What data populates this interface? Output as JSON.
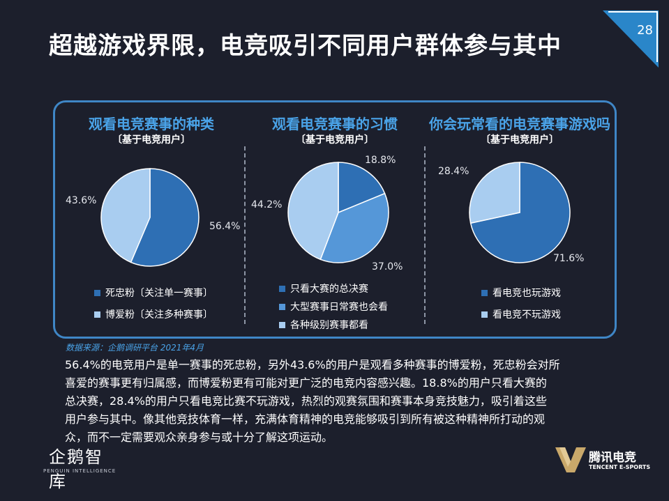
{
  "page": {
    "title": "超越游戏界限，电竞吸引不同用户群体参与其中",
    "page_number": "28",
    "source": "数据来源：企鹅调研平台 2021年4月",
    "body_lines": [
      "56.4%的电竞用户是单一赛事的死忠粉，另外43.6%的用户是观看多种赛事的博爱粉，死忠粉会对所",
      "喜爱的赛事更有归属感，而博爱粉更有可能对更广泛的电竞内容感兴趣。18.8%的用户只看大赛的",
      "总决赛，28.4%的用户只看电竞比赛不玩游戏，热烈的观赛氛围和赛事本身竞技魅力，吸引着这些",
      "用户参与其中。像其他竞技体育一样，充满体育精神的电竞能够吸引到所有被这种精神所打动的观",
      "众，而不一定需要观众亲身参与或十分了解这项运动。"
    ],
    "logo_left_main": "企鹅智库",
    "logo_left_sub": "PENGUIN INTELLIGENCE",
    "logo_right_main": "腾讯电竞",
    "logo_right_sub": "TENCENT E-SPORTS"
  },
  "colors": {
    "background": "#1c1f2c",
    "accent": "#3f86c6",
    "title_blue": "#4aa3e8",
    "dark_blue": "#2e6fb4",
    "mid_blue": "#5597d8",
    "light_blue": "#a9cdf0"
  },
  "chart_data": [
    {
      "type": "pie",
      "title": "观看电竞赛事的种类",
      "subtitle": "〔基于电竞用户〕",
      "categories": [
        "死忠粉〔关注单一赛事〕",
        "博爱粉〔关注多种赛事〕"
      ],
      "values": [
        56.4,
        43.6
      ],
      "labels": [
        "56.4%",
        "43.6%"
      ],
      "colors": [
        "#2e6fb4",
        "#a9cdf0"
      ]
    },
    {
      "type": "pie",
      "title": "观看电竞赛事的习惯",
      "subtitle": "〔基于电竞用户〕",
      "categories": [
        "只看大赛的总决赛",
        "大型赛事日常赛也会看",
        "各种级别赛事都看"
      ],
      "values": [
        18.8,
        37.0,
        44.2
      ],
      "labels": [
        "18.8%",
        "37.0%",
        "44.2%"
      ],
      "colors": [
        "#2e6fb4",
        "#5597d8",
        "#a9cdf0"
      ]
    },
    {
      "type": "pie",
      "title": "你会玩常看的电竞赛事游戏吗",
      "subtitle": "〔基于电竞用户〕",
      "categories": [
        "看电竞也玩游戏",
        "看电竞不玩游戏"
      ],
      "values": [
        71.6,
        28.4
      ],
      "labels": [
        "71.6%",
        "28.4%"
      ],
      "colors": [
        "#2e6fb4",
        "#a9cdf0"
      ]
    }
  ]
}
